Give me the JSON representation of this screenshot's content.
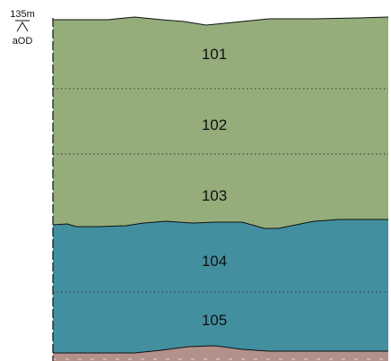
{
  "datum": {
    "elevation": "135m",
    "reference": "aOD"
  },
  "colors": {
    "deposit_green": "#94AD7B",
    "deposit_teal": "#428FA0",
    "deposit_base": "#B3918A",
    "outline": "#111111",
    "divider": "#333333",
    "background": "#ffffff"
  },
  "contexts": [
    {
      "number": "101",
      "fill": "deposit_green"
    },
    {
      "number": "102",
      "fill": "deposit_green"
    },
    {
      "number": "103",
      "fill": "deposit_green"
    },
    {
      "number": "104",
      "fill": "deposit_teal"
    },
    {
      "number": "105",
      "fill": "deposit_teal"
    }
  ],
  "basal_deposit": {
    "fill": "deposit_base"
  }
}
